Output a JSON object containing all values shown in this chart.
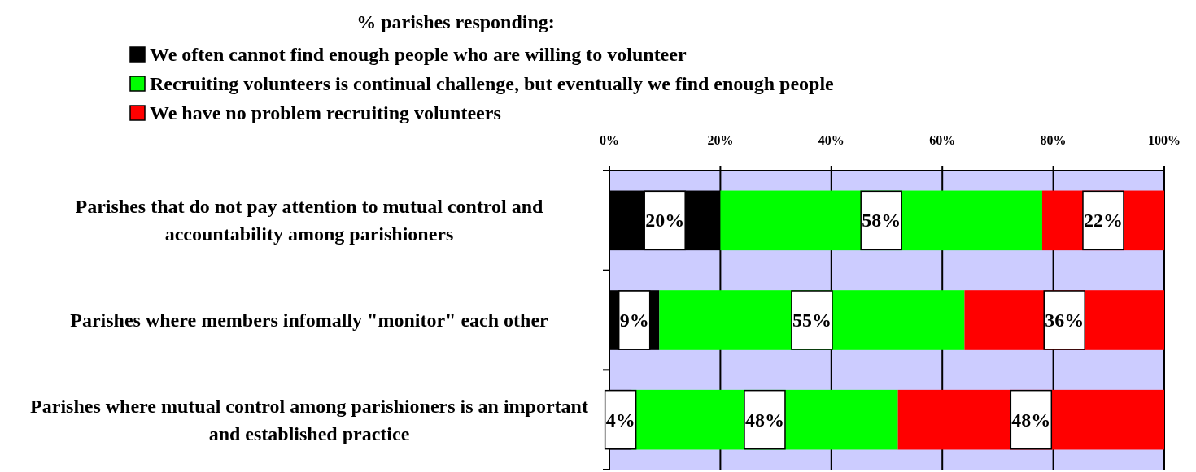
{
  "chart_data": {
    "type": "bar",
    "orientation": "horizontal",
    "stacked": true,
    "legend_title": "% parishes responding:",
    "legend": "top left",
    "grid": "x",
    "categories": [
      "Parishes that do not pay attention to mutual control and accountability among parishioners",
      "Parishes where members infomally \"monitor\" each other",
      "Parishes where mutual control among parishioners is an important and established practice"
    ],
    "series": [
      {
        "name": "We often cannot find enough people who are willing to volunteer",
        "color": "#000000",
        "values": [
          20,
          9,
          4
        ],
        "value_labels": [
          "20%",
          "9%",
          "4%"
        ]
      },
      {
        "name": "Recruiting volunteers is continual challenge, but eventually we find enough people",
        "color": "#00ff00",
        "values": [
          58,
          55,
          48
        ],
        "value_labels": [
          "58%",
          "55%",
          "48%"
        ]
      },
      {
        "name": "We have no problem recruiting volunteers",
        "color": "#ff0000",
        "values": [
          22,
          36,
          48
        ],
        "value_labels": [
          "22%",
          "36%",
          "48%"
        ]
      }
    ],
    "xlim": [
      0,
      100
    ],
    "xticks": [
      {
        "value": 0,
        "label": "0%"
      },
      {
        "value": 20,
        "label": "20%"
      },
      {
        "value": 40,
        "label": "40%"
      },
      {
        "value": 60,
        "label": "60%"
      },
      {
        "value": 80,
        "label": "80%"
      },
      {
        "value": 100,
        "label": "100%"
      }
    ]
  }
}
